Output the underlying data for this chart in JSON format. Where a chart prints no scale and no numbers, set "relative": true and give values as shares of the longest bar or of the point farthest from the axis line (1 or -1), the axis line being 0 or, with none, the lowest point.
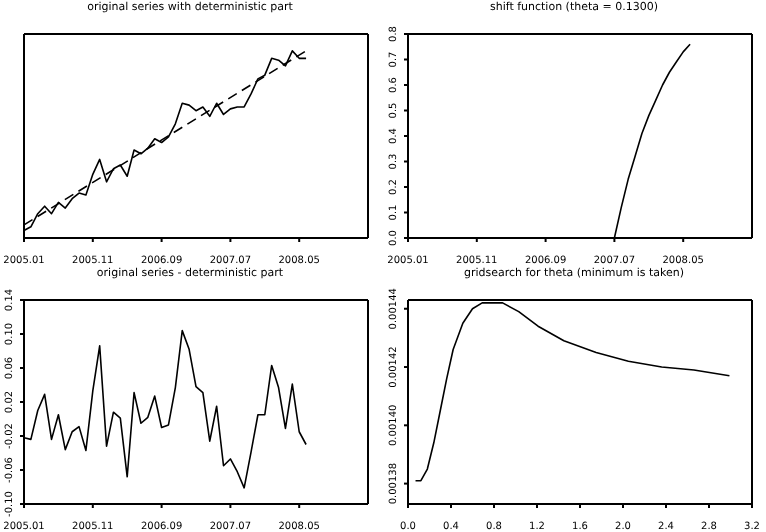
{
  "chart_data": [
    {
      "type": "line",
      "title": "original series with deterministic part",
      "relative": true,
      "tick_labels": "x",
      "xlim": [
        "2005-01",
        "2009-03"
      ],
      "xticks": [
        {
          "value": "2005-01",
          "label": "2005.01"
        },
        {
          "value": "2005-11",
          "label": "2005.11"
        },
        {
          "value": "2006-09",
          "label": "2006.09"
        },
        {
          "value": "2007-07",
          "label": "2007.07"
        },
        {
          "value": "2008-05",
          "label": "2008.05"
        }
      ],
      "x": [
        "2005-01",
        "2005-02",
        "2005-03",
        "2005-04",
        "2005-05",
        "2005-06",
        "2005-07",
        "2005-08",
        "2005-09",
        "2005-10",
        "2005-11",
        "2005-12",
        "2006-01",
        "2006-02",
        "2006-03",
        "2006-04",
        "2006-05",
        "2006-06",
        "2006-07",
        "2006-08",
        "2006-09",
        "2006-10",
        "2006-11",
        "2006-12",
        "2007-01",
        "2007-02",
        "2007-03",
        "2007-04",
        "2007-05",
        "2007-06",
        "2007-07",
        "2007-08",
        "2007-09",
        "2007-10",
        "2007-11",
        "2007-12",
        "2008-01",
        "2008-02",
        "2008-03",
        "2008-04",
        "2008-05",
        "2008-06"
      ],
      "series": [
        {
          "color": "#000000",
          "values": [
            0.04,
            0.06,
            0.13,
            0.17,
            0.13,
            0.19,
            0.16,
            0.21,
            0.24,
            0.23,
            0.34,
            0.42,
            0.3,
            0.37,
            0.39,
            0.33,
            0.47,
            0.45,
            0.48,
            0.53,
            0.51,
            0.54,
            0.61,
            0.72,
            0.71,
            0.68,
            0.7,
            0.65,
            0.72,
            0.66,
            0.69,
            0.7,
            0.7,
            0.77,
            0.85,
            0.87,
            0.96,
            0.95,
            0.92,
            1.0,
            0.96,
            0.96
          ]
        },
        {
          "color": "#000000",
          "line_style": "dashed",
          "x": [
            "2005-01",
            "2008-06"
          ],
          "values": [
            0.07,
            1.0
          ]
        }
      ]
    },
    {
      "type": "line",
      "title": "shift function (theta = 0.1300)",
      "xlim": [
        "2005-01",
        "2009-03"
      ],
      "xticks": [
        {
          "value": "2005-01",
          "label": "2005.01"
        },
        {
          "value": "2005-11",
          "label": "2005.11"
        },
        {
          "value": "2006-09",
          "label": "2006.09"
        },
        {
          "value": "2007-07",
          "label": "2007.07"
        },
        {
          "value": "2008-05",
          "label": "2008.05"
        }
      ],
      "ylim": [
        0,
        0.8
      ],
      "yticks": [
        {
          "value": 0,
          "label": "0.0"
        },
        0.1,
        0.2,
        0.3,
        0.4,
        0.5,
        0.6,
        0.7,
        0.8
      ],
      "x": [
        "2007-07",
        "2007-08",
        "2007-09",
        "2007-10",
        "2007-11",
        "2007-12",
        "2008-01",
        "2008-02",
        "2008-03",
        "2008-04",
        "2008-05",
        "2008-06"
      ],
      "series": [
        {
          "color": "#000000",
          "values": [
            0,
            0.12,
            0.23,
            0.32,
            0.41,
            0.48,
            0.54,
            0.6,
            0.65,
            0.69,
            0.73,
            0.76
          ]
        }
      ]
    },
    {
      "type": "line",
      "title": "original series - deterministic part",
      "xlim": [
        "2005-01",
        "2009-03"
      ],
      "xticks": [
        {
          "value": "2005-01",
          "label": "2005.01"
        },
        {
          "value": "2005-11",
          "label": "2005.11"
        },
        {
          "value": "2006-09",
          "label": "2006.09"
        },
        {
          "value": "2007-07",
          "label": "2007.07"
        },
        {
          "value": "2008-05",
          "label": "2008.05"
        }
      ],
      "ylim": [
        -0.1,
        0.14
      ],
      "yticks": [
        {
          "value": -0.1,
          "label": "-0.10"
        },
        -0.06,
        -0.02,
        0.02,
        0.06,
        {
          "value": 0.1,
          "label": "0.10"
        },
        0.14
      ],
      "x": [
        "2005-01",
        "2005-02",
        "2005-03",
        "2005-04",
        "2005-05",
        "2005-06",
        "2005-07",
        "2005-08",
        "2005-09",
        "2005-10",
        "2005-11",
        "2005-12",
        "2006-01",
        "2006-02",
        "2006-03",
        "2006-04",
        "2006-05",
        "2006-06",
        "2006-07",
        "2006-08",
        "2006-09",
        "2006-10",
        "2006-11",
        "2006-12",
        "2007-01",
        "2007-02",
        "2007-03",
        "2007-04",
        "2007-05",
        "2007-06",
        "2007-07",
        "2007-08",
        "2007-09",
        "2007-10",
        "2007-11",
        "2007-12",
        "2008-01",
        "2008-02",
        "2008-03",
        "2008-04",
        "2008-05",
        "2008-06"
      ],
      "series": [
        {
          "color": "#000000",
          "values": [
            -0.022,
            -0.024,
            0.01,
            0.029,
            -0.024,
            0.005,
            -0.036,
            -0.015,
            -0.009,
            -0.037,
            0.033,
            0.086,
            -0.032,
            0.008,
            0.001,
            -0.068,
            0.031,
            -0.005,
            0.002,
            0.027,
            -0.01,
            -0.007,
            0.037,
            0.104,
            0.082,
            0.038,
            0.031,
            -0.026,
            0.015,
            -0.055,
            -0.047,
            -0.062,
            -0.081,
            -0.039,
            0.005,
            0.005,
            0.063,
            0.037,
            -0.011,
            0.041,
            -0.015,
            -0.03
          ]
        }
      ]
    },
    {
      "type": "line",
      "title": "gridsearch for theta (minimum is taken)",
      "xlim": [
        0,
        3.2
      ],
      "xticks": [
        {
          "value": 0,
          "label": "0.0"
        },
        0.4,
        0.8,
        1.2,
        1.6,
        {
          "value": 2,
          "label": "2.0"
        },
        2.4,
        2.8,
        3.2
      ],
      "ylim": [
        0.001373,
        0.001443
      ],
      "yticks": [
        0.00138,
        {
          "value": 0.0014,
          "label": "0.00140"
        },
        0.00142,
        0.00144
      ],
      "x": [
        0.07,
        0.12,
        0.18,
        0.24,
        0.3,
        0.36,
        0.42,
        0.51,
        0.6,
        0.69,
        0.79,
        0.88,
        1.03,
        1.21,
        1.45,
        1.75,
        2.05,
        2.36,
        2.66,
        2.99
      ],
      "series": [
        {
          "color": "#000000",
          "values": [
            0.001381,
            0.001381,
            0.001385,
            0.001394,
            0.001405,
            0.001416,
            0.001426,
            0.001435,
            0.00144,
            0.001442,
            0.001442,
            0.001442,
            0.001439,
            0.001434,
            0.001429,
            0.001425,
            0.001422,
            0.00142,
            0.001419,
            0.001417
          ]
        }
      ]
    }
  ]
}
